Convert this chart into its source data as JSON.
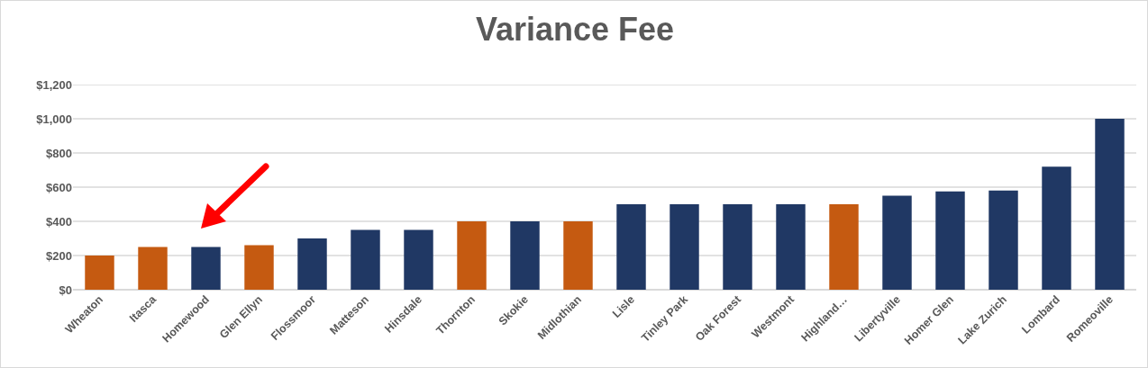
{
  "chart_data": {
    "type": "bar",
    "title": "Variance Fee",
    "categories": [
      "Wheaton",
      "Itasca",
      "Homewood",
      "Glen Ellyn",
      "Flossmoor",
      "Matteson",
      "Hinsdale",
      "Thornton",
      "Skokie",
      "Midlothian",
      "Lisle",
      "Tinley Park",
      "Oak Forest",
      "Westmont",
      "Highland…",
      "Libertyville",
      "Homer Glen",
      "Lake Zurich",
      "Lombard",
      "Romeoville"
    ],
    "values": [
      200,
      250,
      250,
      260,
      300,
      350,
      350,
      400,
      400,
      400,
      500,
      500,
      500,
      500,
      500,
      550,
      575,
      580,
      720,
      1000
    ],
    "colors": [
      "#c55a11",
      "#c55a11",
      "#203864",
      "#c55a11",
      "#203864",
      "#203864",
      "#203864",
      "#c55a11",
      "#203864",
      "#c55a11",
      "#203864",
      "#203864",
      "#203864",
      "#203864",
      "#c55a11",
      "#203864",
      "#203864",
      "#203864",
      "#203864",
      "#203864"
    ],
    "ylim": [
      0,
      1200
    ],
    "yticks": [
      {
        "value": 0,
        "label": "$0"
      },
      {
        "value": 200,
        "label": "$200"
      },
      {
        "value": 400,
        "label": "$400"
      },
      {
        "value": 600,
        "label": "$600"
      },
      {
        "value": 800,
        "label": "$800"
      },
      {
        "value": 1000,
        "label": "$1,000"
      },
      {
        "value": 1200,
        "label": "$1,200"
      }
    ],
    "grid": "y"
  }
}
